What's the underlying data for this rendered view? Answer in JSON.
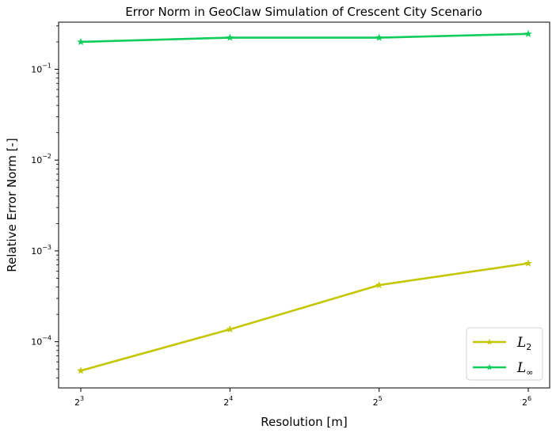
{
  "chart_data": {
    "type": "line",
    "title": "Error Norm in GeoClaw Simulation of Crescent City Scenario",
    "xlabel": "Resolution [m]",
    "ylabel": "Relative Error Norm [-]",
    "x_scale": "log2",
    "y_scale": "log10",
    "x": [
      8,
      16,
      32,
      64
    ],
    "x_tick_labels": [
      {
        "base": "2",
        "exp": "3"
      },
      {
        "base": "2",
        "exp": "4"
      },
      {
        "base": "2",
        "exp": "5"
      },
      {
        "base": "2",
        "exp": "6"
      }
    ],
    "y_tick_labels": [
      {
        "base": "10",
        "exp": "−1",
        "value": 0.1
      },
      {
        "base": "10",
        "exp": "−2",
        "value": 0.01
      },
      {
        "base": "10",
        "exp": "−3",
        "value": 0.001
      },
      {
        "base": "10",
        "exp": "−4",
        "value": 0.0001
      }
    ],
    "ylim": [
      3.1e-05,
      0.33
    ],
    "grid": false,
    "legend_position": "lower-right",
    "series": [
      {
        "name": "L",
        "name_sub": "2",
        "color": "#c4c600",
        "marker": "star",
        "values": [
          4.8e-05,
          0.000137,
          0.00042,
          0.00073
        ]
      },
      {
        "name": "L",
        "name_sub": "∞",
        "color": "#12cc5b",
        "marker": "star",
        "values": [
          0.2,
          0.223,
          0.223,
          0.245
        ]
      }
    ]
  }
}
